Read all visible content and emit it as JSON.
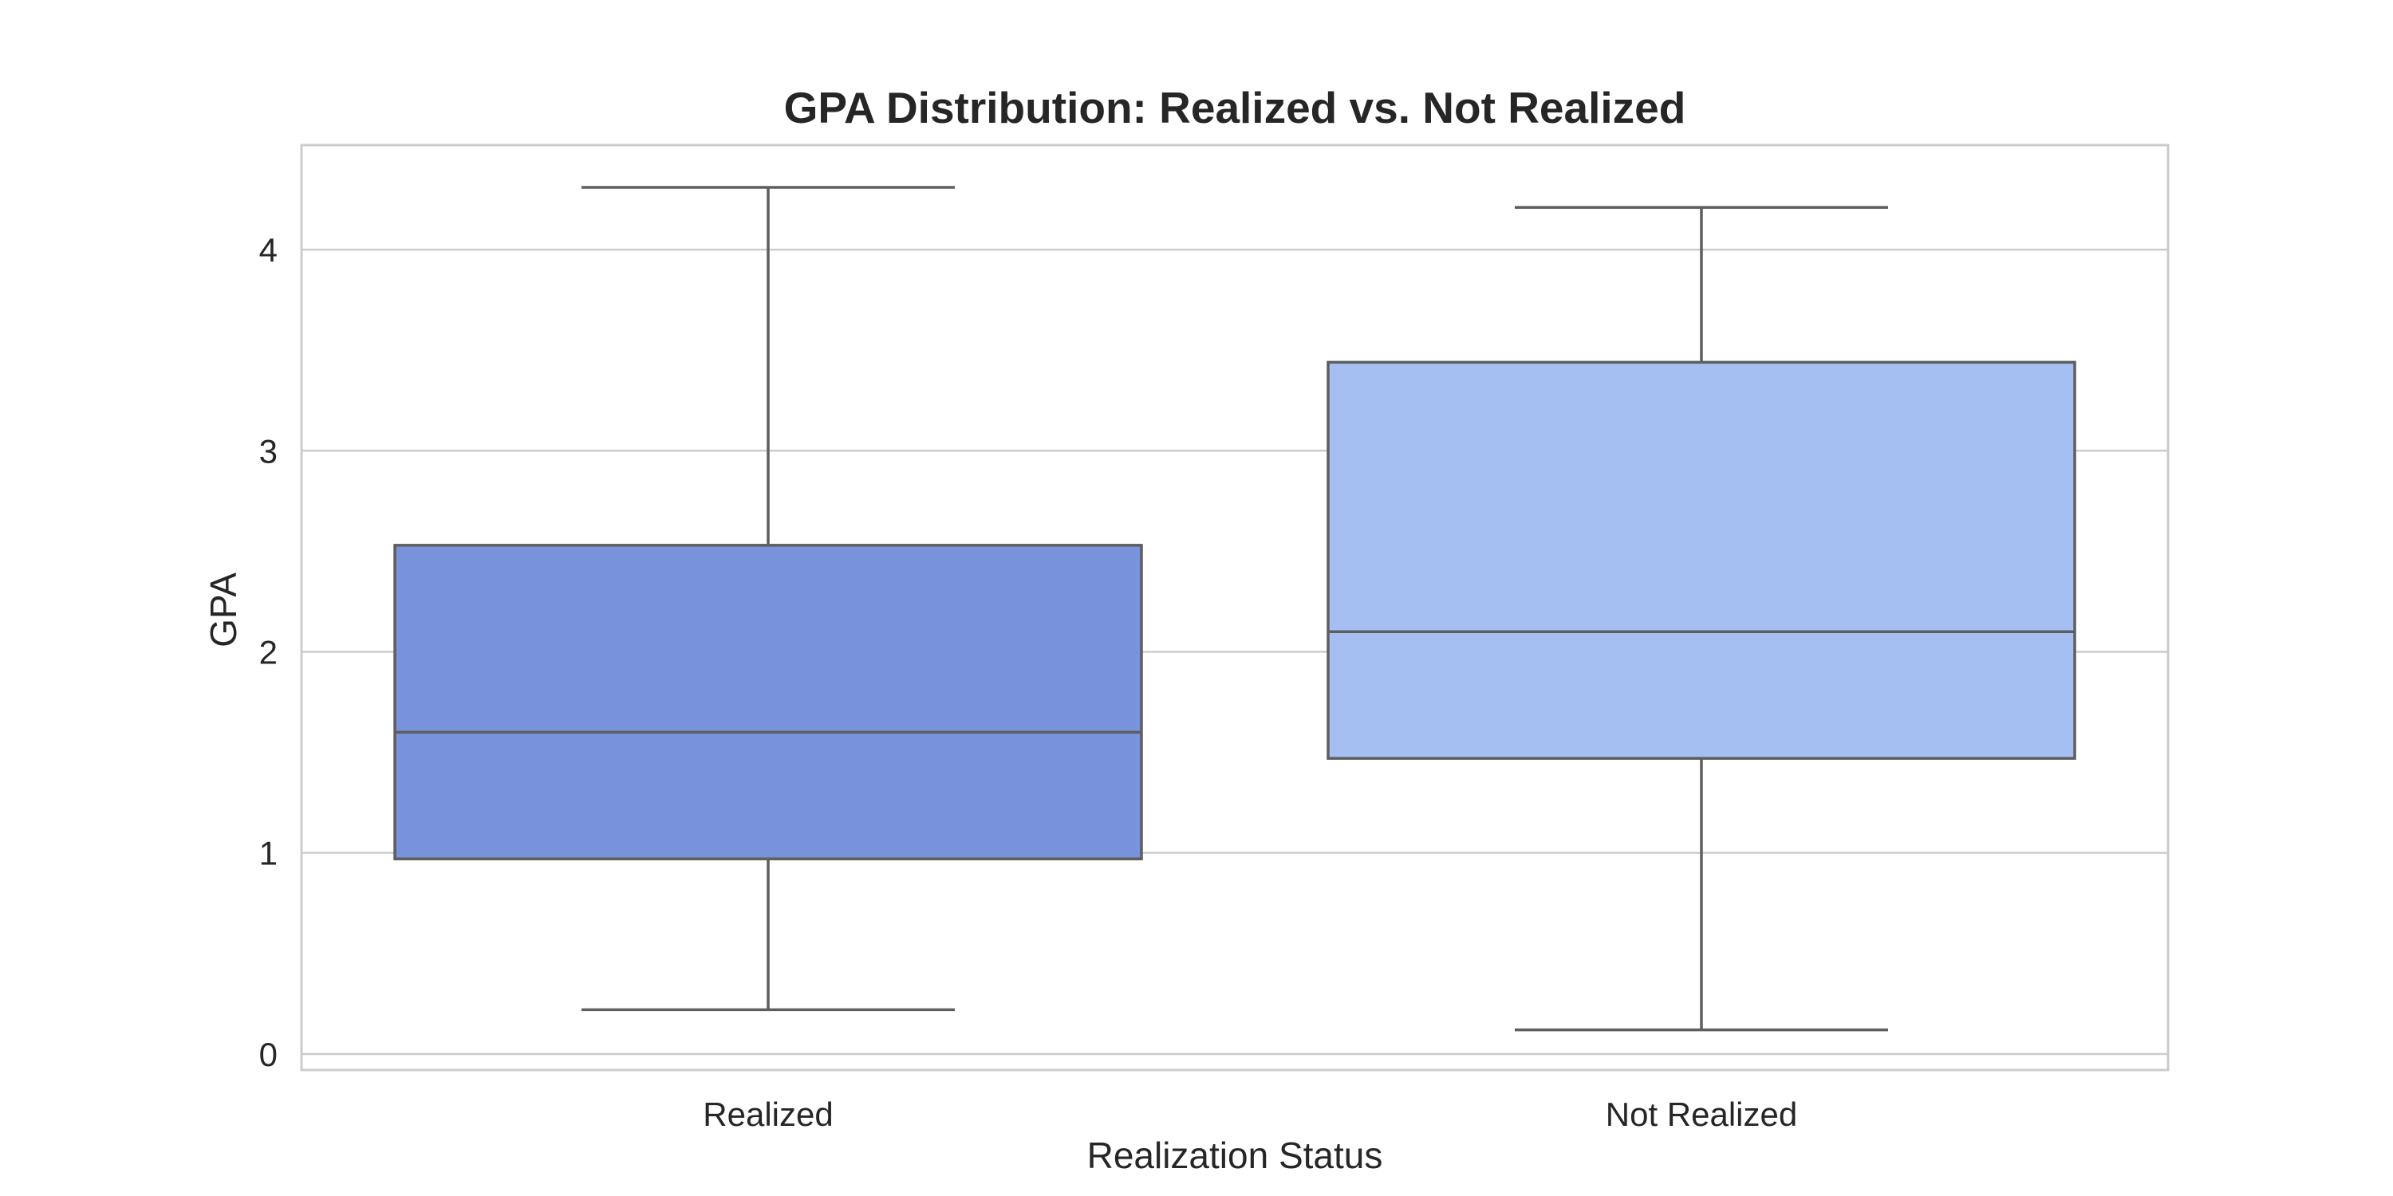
{
  "chart_data": {
    "type": "box",
    "title": "GPA Distribution: Realized vs. Not Realized",
    "xlabel": "Realization Status",
    "ylabel": "GPA",
    "categories": [
      "Realized",
      "Not Realized"
    ],
    "ylim": [
      -0.08,
      4.52
    ],
    "yticks": [
      0,
      1,
      2,
      3,
      4
    ],
    "grid": true,
    "boxes": [
      {
        "category": "Realized",
        "whisker_low": 0.22,
        "q1": 0.97,
        "median": 1.6,
        "q3": 2.53,
        "whisker_high": 4.31,
        "color": "#7892dc"
      },
      {
        "category": "Not Realized",
        "whisker_low": 0.12,
        "q1": 1.47,
        "median": 2.1,
        "q3": 3.44,
        "whisker_high": 4.21,
        "color": "#a5bff3"
      }
    ]
  }
}
